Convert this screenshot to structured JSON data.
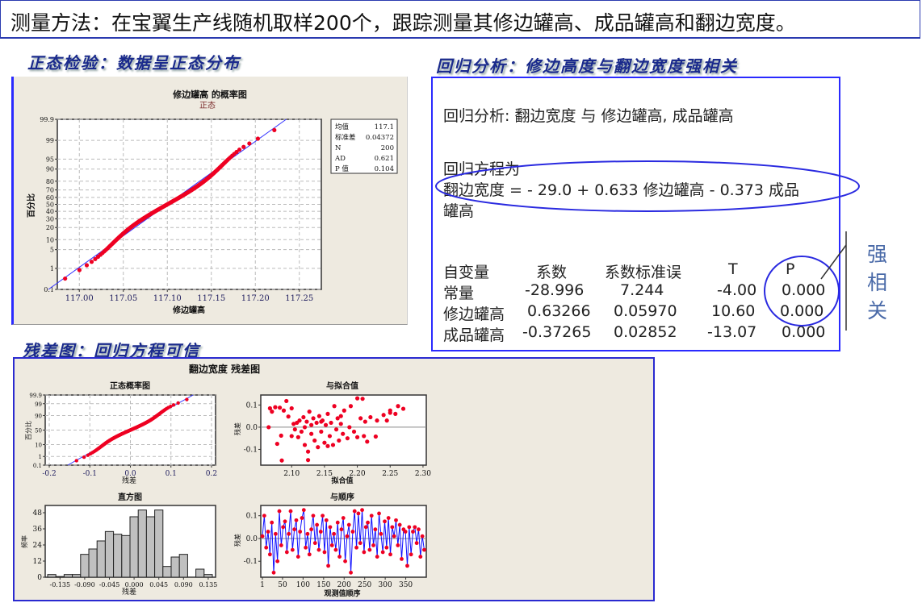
{
  "header": {
    "title": "测量方法：在宝翼生产线随机取样200个，跟踪测量其修边罐高、成品罐高和翻边宽度。"
  },
  "sections": {
    "normality": "正态检验：数据呈正态分布",
    "regression": "回归分析：修边高度与翻边宽度强相关",
    "residual": "残差图：回归方程可信"
  },
  "regression": {
    "heading": "回归分析: 翻边宽度 与 修边罐高, 成品罐高",
    "equation_label": "回归方程为",
    "equation_line1": "翻边宽度 = - 29.0 + 0.633 修边罐高 - 0.373 成品",
    "equation_line2": "罐高",
    "columns": [
      "自变量",
      "系数",
      "系数标准误",
      "T",
      "P"
    ],
    "rows": [
      [
        "常量",
        "-28.996",
        "7.244",
        "-4.00",
        "0.000"
      ],
      [
        "修边罐高",
        "0.63266",
        "0.05970",
        "10.60",
        "0.000"
      ],
      [
        "成品罐高",
        "-0.37265",
        "0.02852",
        "-13.07",
        "0.000"
      ]
    ],
    "annotation": [
      "强",
      "相",
      "关"
    ],
    "highlight_color": "#2a2ae0"
  },
  "chart_data": [
    {
      "type": "scatter",
      "subtype": "normal-probability",
      "title": "修边罐高 的概率图",
      "subtitle": "正态",
      "xlabel": "修边罐高",
      "ylabel": "百分比",
      "xlim": [
        116.975,
        117.275
      ],
      "xticks": [
        "117.00",
        "117.05",
        "117.10",
        "117.15",
        "117.20",
        "117.25"
      ],
      "yticks": [
        "0.1",
        "1",
        "5",
        "10",
        "20",
        "30",
        "40",
        "50",
        "60",
        "70",
        "80",
        "90",
        "95",
        "99",
        "99.9"
      ],
      "grid": true,
      "legend": {
        "placement": "right",
        "rows": [
          [
            "均值",
            "117.1"
          ],
          [
            "标准差",
            "0.04372"
          ],
          [
            "N",
            "200"
          ],
          [
            "AD",
            "0.621"
          ],
          [
            "P 值",
            "0.104"
          ]
        ]
      },
      "stats": {
        "mean": 117.1,
        "sd": 0.04372,
        "n": 200
      },
      "point_color": "#ee0022",
      "line_color": "#3030ff"
    },
    {
      "type": "scatter",
      "subtype": "normal-probability",
      "title": "正态概率图",
      "xlabel": "残差",
      "ylabel": "百分比",
      "xlim": [
        -0.21,
        0.21
      ],
      "xticks": [
        "-0.2",
        "-0.1",
        "0.0",
        "0.1",
        "0.2"
      ],
      "yticks": [
        "0.1",
        "1",
        "10",
        "50",
        "90",
        "99",
        "99.9"
      ],
      "grid": true,
      "stats": {
        "mean": 0,
        "sd": 0.05,
        "n": 200
      }
    },
    {
      "type": "scatter",
      "title": "与拟合值",
      "xlabel": "拟合值",
      "ylabel": "残差",
      "xlim": [
        2.053,
        2.305
      ],
      "ylim": [
        -0.171,
        0.145
      ],
      "xticks": [
        "2.10",
        "2.15",
        "2.20",
        "2.25",
        "2.30"
      ],
      "yticks": [
        "-0.1",
        "0.0",
        "0.1"
      ],
      "points": [
        [
          2.065,
          0.0
        ],
        [
          2.067,
          0.085
        ],
        [
          2.07,
          0.07
        ],
        [
          2.075,
          0.09
        ],
        [
          2.078,
          -0.075
        ],
        [
          2.082,
          0.088
        ],
        [
          2.084,
          -0.038
        ],
        [
          2.088,
          0.075
        ],
        [
          2.092,
          0.118
        ],
        [
          2.095,
          0.048
        ],
        [
          2.1,
          0.085
        ],
        [
          2.1,
          -0.04
        ],
        [
          2.103,
          0.015
        ],
        [
          2.105,
          -0.01
        ],
        [
          2.108,
          0.02
        ],
        [
          2.11,
          -0.045
        ],
        [
          2.112,
          0.03
        ],
        [
          2.115,
          -0.02
        ],
        [
          2.118,
          0.045
        ],
        [
          2.12,
          0.0
        ],
        [
          2.12,
          -0.08
        ],
        [
          2.123,
          0.025
        ],
        [
          2.125,
          -0.11
        ],
        [
          2.127,
          0.07
        ],
        [
          2.13,
          0.01
        ],
        [
          2.13,
          -0.03
        ],
        [
          2.133,
          0.04
        ],
        [
          2.135,
          -0.06
        ],
        [
          2.138,
          0.02
        ],
        [
          2.14,
          -0.09
        ],
        [
          2.142,
          0.05
        ],
        [
          2.145,
          -0.02
        ],
        [
          2.147,
          0.03
        ],
        [
          2.15,
          -0.07
        ],
        [
          2.152,
          0.01
        ],
        [
          2.155,
          0.06
        ],
        [
          2.158,
          -0.04
        ],
        [
          2.16,
          0.02
        ],
        [
          2.163,
          -0.08
        ],
        [
          2.165,
          0.095
        ],
        [
          2.168,
          -0.01
        ],
        [
          2.17,
          0.04
        ],
        [
          2.172,
          -0.06
        ],
        [
          2.175,
          0.015
        ],
        [
          2.178,
          -0.03
        ],
        [
          2.18,
          0.075
        ],
        [
          2.185,
          -0.05
        ],
        [
          2.188,
          0.0
        ],
        [
          2.19,
          0.095
        ],
        [
          2.195,
          -0.02
        ],
        [
          2.2,
          0.13
        ],
        [
          2.2,
          -0.045
        ],
        [
          2.205,
          0.04
        ],
        [
          2.208,
          0.128
        ],
        [
          2.21,
          -0.04
        ],
        [
          2.212,
          0.025
        ],
        [
          2.215,
          -0.065
        ],
        [
          2.22,
          0.045
        ],
        [
          2.228,
          -0.042
        ],
        [
          2.23,
          0.03
        ],
        [
          2.24,
          0.055
        ],
        [
          2.245,
          0.03
        ],
        [
          2.25,
          0.075
        ],
        [
          2.25,
          0.065
        ],
        [
          2.258,
          0.06
        ],
        [
          2.262,
          0.095
        ],
        [
          2.27,
          0.083
        ],
        [
          2.085,
          -0.15
        ],
        [
          2.125,
          -0.148
        ],
        [
          2.145,
          0.025
        ],
        [
          2.155,
          -0.085
        ],
        [
          2.175,
          0.05
        ]
      ],
      "zero_line": true
    },
    {
      "type": "bar",
      "subtype": "histogram",
      "title": "直方图",
      "xlabel": "残差",
      "ylabel": "频率",
      "bin_centers": [
        -0.15,
        -0.135,
        -0.12,
        -0.105,
        -0.09,
        -0.075,
        -0.06,
        -0.045,
        -0.03,
        -0.015,
        0.0,
        0.015,
        0.03,
        0.045,
        0.06,
        0.075,
        0.09,
        0.105,
        0.12,
        0.135
      ],
      "values": [
        2,
        0.5,
        2,
        2,
        17,
        21,
        27,
        34,
        32,
        31,
        45,
        50,
        45,
        50,
        8,
        15,
        17,
        0,
        6,
        2
      ],
      "xticks": [
        "-0.135",
        "-0.090",
        "-0.045",
        "0.000",
        "0.045",
        "0.090",
        "0.135"
      ],
      "yticks": [
        "0",
        "12",
        "24",
        "36",
        "48"
      ],
      "ylim": [
        0,
        53.4
      ],
      "bar_color": "#c0c0c0"
    },
    {
      "type": "line",
      "title": "与顺序",
      "xlabel": "观测值顺序",
      "ylabel": "残差",
      "xticks": [
        "1",
        "50",
        "100",
        "150",
        "200",
        "250",
        "300",
        "350"
      ],
      "yticks": [
        "-0.1",
        "0.0",
        "0.1"
      ],
      "xlim": [
        -3,
        400
      ],
      "ylim": [
        -0.17,
        0.145
      ],
      "values": [
        0.01,
        0.1,
        -0.04,
        0.03,
        -0.07,
        0.07,
        -0.15,
        0.02,
        -0.1,
        0.12,
        -0.03,
        0.05,
        0.075,
        -0.06,
        0.02,
        0.12,
        -0.05,
        0.04,
        0.08,
        -0.08,
        0.03,
        0.09,
        0.125,
        -0.04,
        0.02,
        -0.07,
        0.04,
        0.1,
        -0.02,
        0.06,
        -0.05,
        0.03,
        0.1,
        -0.06,
        0.08,
        -0.12,
        0.05,
        -0.03,
        0.02,
        -0.05,
        0.07,
        -0.08,
        0.04,
        0.09,
        -0.1,
        0.01,
        0.06,
        -0.15,
        0.03,
        0.12,
        -0.04,
        0.11,
        -0.02,
        0.125,
        -0.06,
        0.05,
        0.07,
        -0.05,
        0.1,
        -0.03,
        0.04,
        -0.08,
        0.11,
        0.02,
        -0.06,
        0.075,
        -0.04,
        0.09,
        -0.07,
        0.05,
        0.01,
        0.08,
        -0.03,
        0.06,
        -0.09,
        0.04,
        0.03,
        -0.12,
        0.05,
        -0.07,
        0.03,
        0.05,
        -0.02,
        0.04,
        -0.08,
        0.01,
        -0.05
      ],
      "point_color": "#ee0022",
      "line_color": "#1010ff"
    }
  ],
  "residual_panel": {
    "title": "翻边宽度  残差图"
  }
}
